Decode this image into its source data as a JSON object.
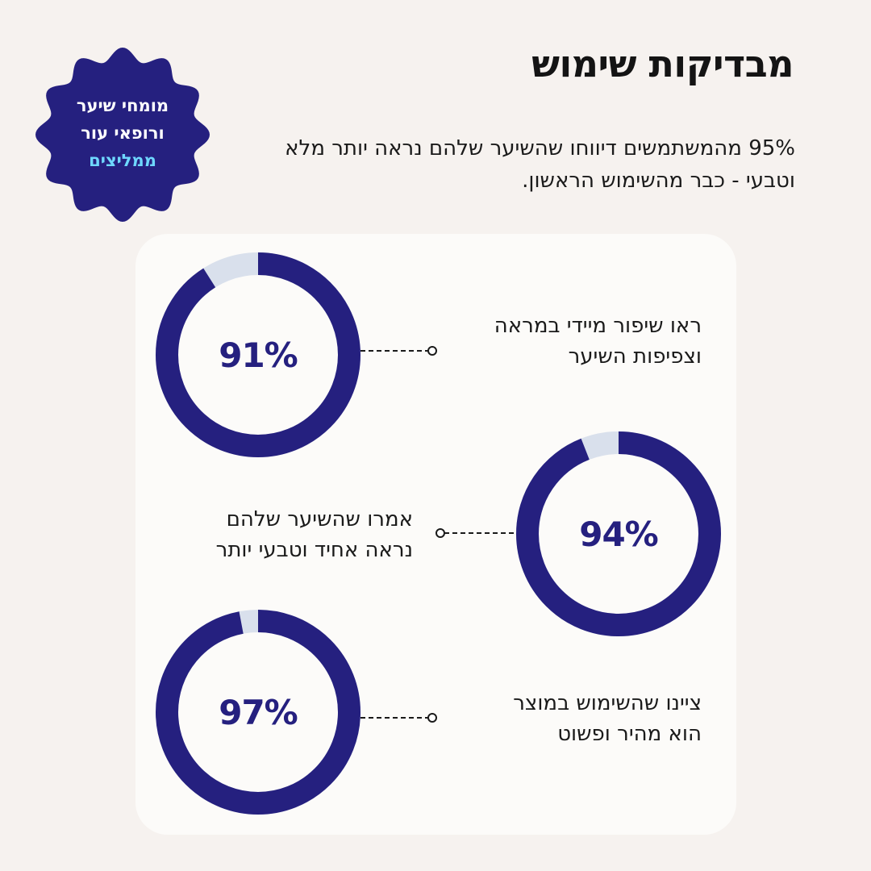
{
  "title": "מבדיקות שימוש",
  "subtitle": "95% מהמשתמשים דיווחו שהשיער שלהם נראה יותר מלא וטבעי - כבר מהשימוש הראשון.",
  "badge": {
    "line1": "מומחי שיער",
    "line2": "ורופאי עור",
    "accent": "ממליצים"
  },
  "stats": [
    {
      "value": 91,
      "label": "91%",
      "line1": "ראו שיפור מיידי במראה",
      "line2": "וצפיפות השיער"
    },
    {
      "value": 94,
      "label": "94%",
      "line1": "אמרו שהשיער שלהם",
      "line2": "נראה אחיד וטבעי יותר"
    },
    {
      "value": 97,
      "label": "97%",
      "line1": "ציינו שהשימוש במוצר",
      "line2": "הוא מהיר ופשוט"
    }
  ],
  "colors": {
    "accent": "#25207f",
    "track": "#d9e0ec",
    "badge_accent_text": "#6fd8ff",
    "background": "#f6f2ef",
    "card": "#fcfbf9"
  }
}
